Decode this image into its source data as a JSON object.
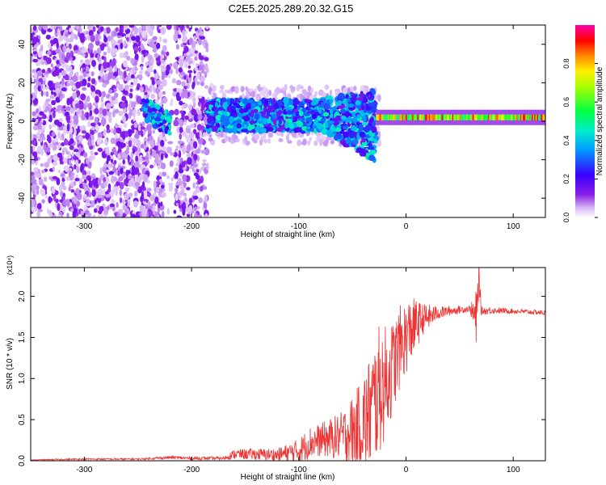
{
  "title": "C2E5.2025.289.20.32.G15",
  "chart_data": [
    {
      "type": "heatmap",
      "xlabel": "Height of straight line (km)",
      "ylabel": "Frequency (Hz)",
      "xlim": [
        -350,
        130
      ],
      "ylim": [
        -50,
        50
      ],
      "x_ticks": [
        -300,
        -200,
        -100,
        0,
        100
      ],
      "x_tick_labels": [
        "-300",
        "-200",
        "-100",
        "0",
        "100"
      ],
      "y_ticks": [
        -40,
        -20,
        0,
        20,
        40
      ],
      "y_tick_labels": [
        "-40",
        "-20",
        "0",
        "20",
        "40"
      ],
      "colorbar": {
        "label": "Normalized spectral amplitude",
        "range": [
          0,
          1
        ],
        "ticks": [
          0.0,
          0.2,
          0.4,
          0.6,
          0.8
        ],
        "tick_labels": [
          "0.0",
          "0.2",
          "0.4",
          "0.6",
          "0.8"
        ],
        "colors": [
          "#ffffff",
          "#cfaaf5",
          "#7a00e6",
          "#2e00ff",
          "#00b8ff",
          "#00ff88",
          "#66ff00",
          "#ffff00",
          "#ff9900",
          "#ff0000",
          "#ff00aa"
        ]
      },
      "regions": [
        {
          "x_range": [
            -350,
            -185
          ],
          "freq_range": [
            -50,
            50
          ],
          "amplitude": 0.15,
          "description": "scattered noise"
        },
        {
          "x_range": [
            -245,
            -220
          ],
          "freq_center": 2,
          "freq_halfwidth": 6,
          "amplitude": 0.35
        },
        {
          "x_range": [
            -185,
            -28
          ],
          "freq_center": 3,
          "freq_halfwidth": 8,
          "amplitude": 0.4
        },
        {
          "x_range": [
            -28,
            130
          ],
          "freq_center": 2,
          "freq_halfwidth": 2,
          "amplitude": 0.85
        }
      ],
      "grid": false
    },
    {
      "type": "line",
      "xlabel": "Height of straight line (km)",
      "ylabel": "SNR (10 * v/v)",
      "y_scale_label": "(x10⁴)",
      "xlim": [
        -350,
        130
      ],
      "ylim": [
        0,
        2.35
      ],
      "x_ticks": [
        -300,
        -200,
        -100,
        0,
        100
      ],
      "x_tick_labels": [
        "-300",
        "-200",
        "-100",
        "0",
        "100"
      ],
      "y_ticks": [
        0.0,
        0.5,
        1.0,
        1.5,
        2.0
      ],
      "y_tick_labels": [
        "0.0",
        "0.5",
        "1.0",
        "1.5",
        "2.0"
      ],
      "series": [
        {
          "color": "#ee3333",
          "x": [
            -350,
            -300,
            -250,
            -220,
            -200,
            -170,
            -160,
            -140,
            -120,
            -100,
            -90,
            -80,
            -60,
            -45,
            -35,
            -25,
            -15,
            -5,
            5,
            15,
            30,
            45,
            60,
            66,
            68,
            70,
            80,
            100,
            130
          ],
          "values": [
            0.01,
            0.02,
            0.02,
            0.04,
            0.03,
            0.03,
            0.08,
            0.08,
            0.07,
            0.12,
            0.22,
            0.25,
            0.3,
            0.4,
            0.55,
            0.85,
            1.05,
            1.4,
            1.6,
            1.72,
            1.8,
            1.83,
            1.85,
            1.7,
            2.28,
            1.82,
            1.83,
            1.82,
            1.8
          ],
          "noise_amplitude": [
            0.005,
            0.01,
            0.01,
            0.02,
            0.02,
            0.02,
            0.06,
            0.07,
            0.08,
            0.15,
            0.2,
            0.2,
            0.3,
            0.5,
            0.7,
            0.8,
            0.6,
            0.5,
            0.4,
            0.2,
            0.08,
            0.05,
            0.04,
            0.4,
            0.2,
            0.05,
            0.04,
            0.03,
            0.03
          ]
        }
      ],
      "grid": false
    }
  ]
}
